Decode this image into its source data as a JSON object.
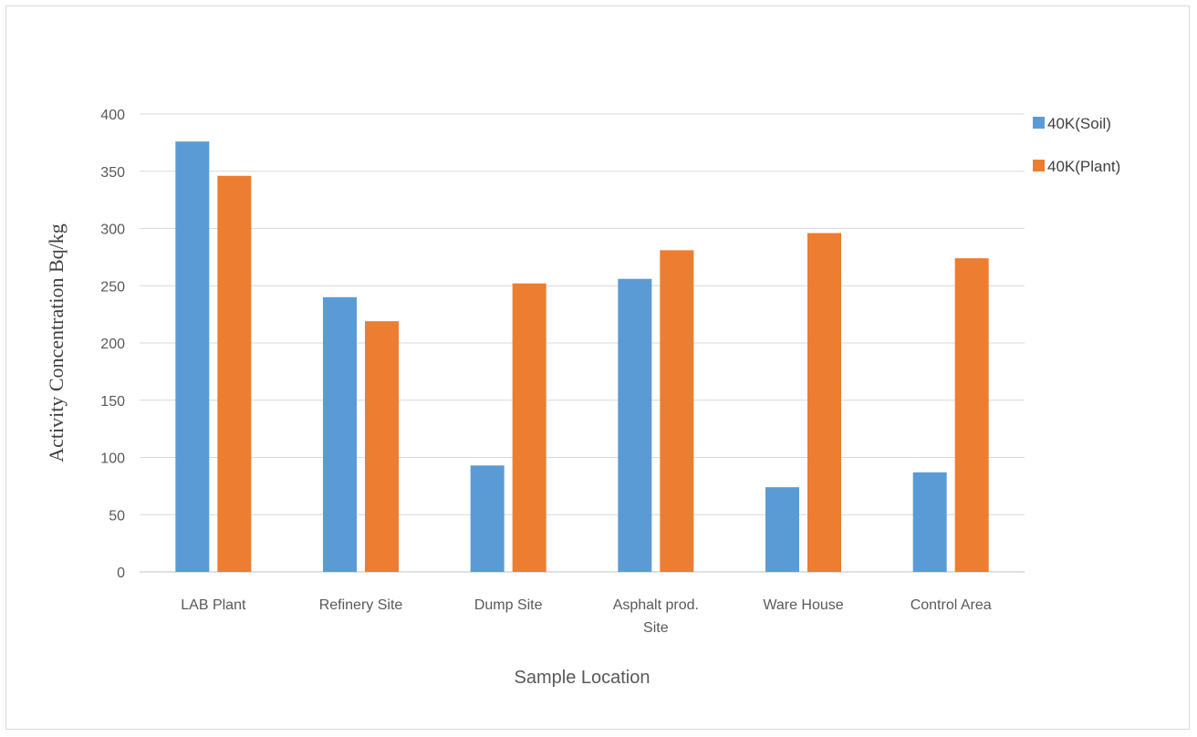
{
  "chart_data": {
    "type": "bar",
    "title": "",
    "xlabel": "Sample Location",
    "ylabel": "Activity Concentration Bq/kg",
    "categories": [
      [
        "LAB Plant"
      ],
      [
        "Refinery Site"
      ],
      [
        "Dump Site"
      ],
      [
        "Asphalt prod.",
        "Site"
      ],
      [
        "Ware House"
      ],
      [
        "Control Area"
      ]
    ],
    "series": [
      {
        "name": "40K(Soil)",
        "color": "#5b9bd5",
        "values": [
          376,
          240,
          93,
          256,
          74,
          87
        ]
      },
      {
        "name": "40K(Plant)",
        "color": "#ed7d31",
        "values": [
          346,
          219,
          252,
          281,
          296,
          274
        ]
      }
    ],
    "ylim": [
      0,
      400
    ],
    "yticks": [
      0,
      50,
      100,
      150,
      200,
      250,
      300,
      350,
      400
    ],
    "grid": true,
    "legend": "top-right"
  }
}
